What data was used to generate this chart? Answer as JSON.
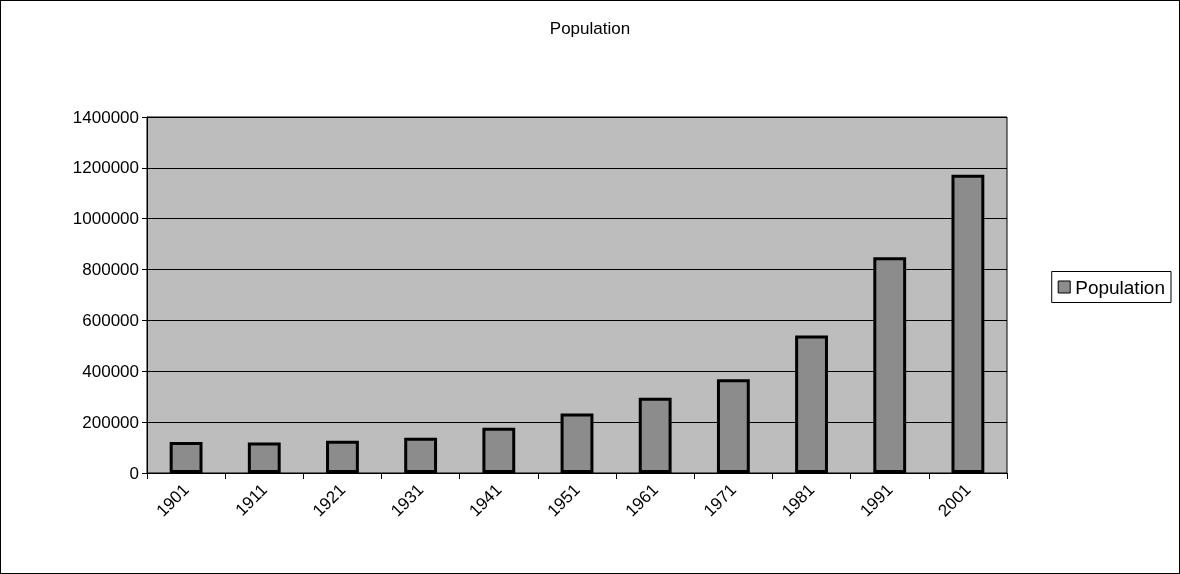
{
  "chart_data": {
    "type": "bar",
    "title": "Population",
    "categories": [
      "1901",
      "1911",
      "1921",
      "1931",
      "1941",
      "1951",
      "1961",
      "1971",
      "1981",
      "1991",
      "2001"
    ],
    "series": [
      {
        "name": "Population",
        "color": "#8c8c8c",
        "values": [
          122000,
          120000,
          127000,
          139000,
          178000,
          234000,
          296000,
          369000,
          541000,
          848000,
          1173000
        ]
      }
    ],
    "ylim": [
      0,
      1400000
    ],
    "yticks": [
      0,
      200000,
      400000,
      600000,
      800000,
      1000000,
      1200000,
      1400000
    ],
    "grid": "y",
    "legend": "right"
  }
}
